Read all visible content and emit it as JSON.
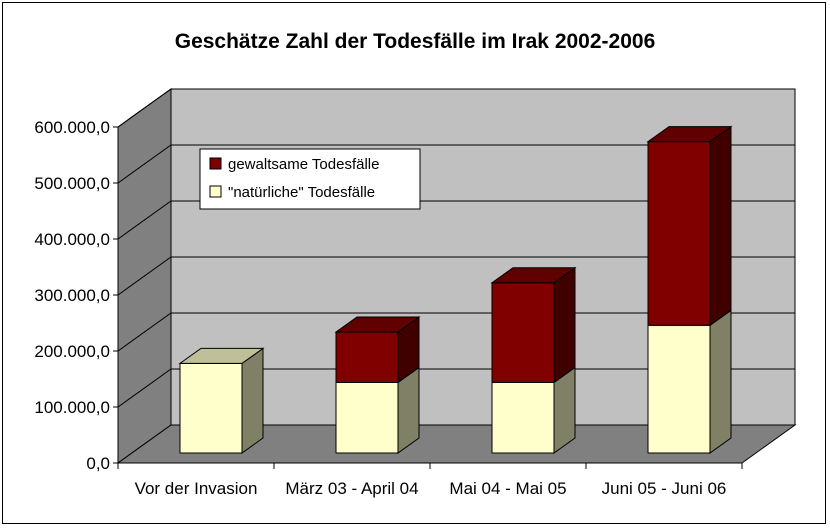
{
  "chart_data": {
    "type": "bar",
    "stacked": true,
    "three_d": true,
    "title": "Geschätze Zahl der Todesfälle im Irak 2002-2006",
    "categories": [
      "Vor der Invasion",
      "März 03 - April 04",
      "Mai 04 - Mai 05",
      "Juni 05 - Juni 06"
    ],
    "series": [
      {
        "name": "\"natürliche\" Todesfälle",
        "values": [
          160000,
          126000,
          126000,
          228000
        ],
        "color": "#FFFFCC"
      },
      {
        "name": "gewaltsame Todesfälle",
        "values": [
          0,
          90000,
          178000,
          328000
        ],
        "color": "#800000"
      }
    ],
    "y_ticks": [
      "0,0",
      "100.000,0",
      "200.000,0",
      "300.000,0",
      "400.000,0",
      "500.000,0",
      "600.000,0"
    ],
    "ylim": [
      0,
      600000
    ],
    "grid": true,
    "legend": "top-left",
    "colors": {
      "wall": "#C0C0C0",
      "side_wall": "#808080",
      "floor": "#808080"
    }
  }
}
